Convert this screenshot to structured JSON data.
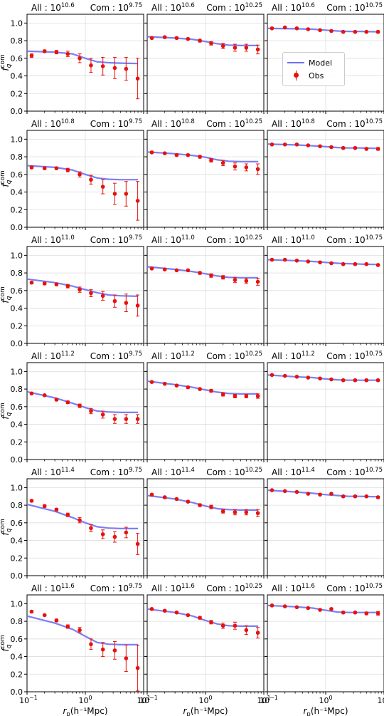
{
  "legend": {
    "model_label": "Model",
    "obs_label": "Obs"
  },
  "colors": {
    "model": "#6f6ff5",
    "obs": "#e8120c",
    "grid": "#dddddd",
    "axis": "#000000"
  },
  "axes_common": {
    "ylabel": "f_q^com",
    "ylabel_main": "f",
    "ylabel_sub": "q",
    "ylabel_sup": "com",
    "xlabel_main": "r",
    "xlabel_sub": "p",
    "xlabel_rest": "(h⁻¹Mpc)",
    "xlim": [
      0.1,
      10
    ],
    "ylim": [
      0.0,
      1.1
    ],
    "xscale": "log",
    "grid": true,
    "yticks": [
      "0.0",
      "0.2",
      "0.4",
      "0.6",
      "0.8",
      "1.0"
    ],
    "xtick_base": "10",
    "xtick_exps": [
      "−1",
      "0",
      "1"
    ]
  },
  "chart_data": {
    "type": "scatter",
    "r_obs": [
      0.12,
      0.2,
      0.32,
      0.5,
      0.8,
      1.25,
      2.0,
      3.2,
      5.0,
      7.9
    ],
    "rows": [
      {
        "all_mantissa": "10",
        "all_exp": "10.6"
      },
      {
        "all_mantissa": "10",
        "all_exp": "10.8"
      },
      {
        "all_mantissa": "10",
        "all_exp": "11.0"
      },
      {
        "all_mantissa": "10",
        "all_exp": "11.2"
      },
      {
        "all_mantissa": "10",
        "all_exp": "11.4"
      },
      {
        "all_mantissa": "10",
        "all_exp": "11.6"
      }
    ],
    "cols": [
      {
        "com_mantissa": "10",
        "com_exp": "9.75"
      },
      {
        "com_mantissa": "10",
        "com_exp": "10.25"
      },
      {
        "com_mantissa": "10",
        "com_exp": "10.75"
      }
    ],
    "title_all": "All : ",
    "title_com": "Com : ",
    "panels": [
      {
        "row": 0,
        "col": 0,
        "model_r": [
          0.1,
          0.3,
          0.6,
          1.0,
          1.6,
          2.5,
          4.0,
          8.0
        ],
        "model_f": [
          0.68,
          0.67,
          0.65,
          0.6,
          0.56,
          0.55,
          0.545,
          0.54
        ],
        "obs_f": [
          0.63,
          0.68,
          0.67,
          0.65,
          0.6,
          0.52,
          0.51,
          0.49,
          0.48,
          0.37
        ],
        "obs_err": [
          0.02,
          0.015,
          0.02,
          0.03,
          0.05,
          0.08,
          0.1,
          0.12,
          0.13,
          0.23
        ]
      },
      {
        "row": 0,
        "col": 1,
        "model_r": [
          0.1,
          0.3,
          0.6,
          1.0,
          1.6,
          2.5,
          4.0,
          8.0
        ],
        "model_f": [
          0.845,
          0.83,
          0.815,
          0.79,
          0.765,
          0.75,
          0.745,
          0.745
        ],
        "obs_f": [
          0.83,
          0.84,
          0.83,
          0.82,
          0.8,
          0.77,
          0.74,
          0.72,
          0.72,
          0.7
        ],
        "obs_err": [
          0.01,
          0.01,
          0.01,
          0.01,
          0.015,
          0.02,
          0.03,
          0.04,
          0.04,
          0.05
        ]
      },
      {
        "row": 0,
        "col": 2,
        "model_r": [
          0.1,
          0.3,
          0.6,
          1.0,
          1.6,
          2.5,
          4.0,
          8.0
        ],
        "model_f": [
          0.94,
          0.935,
          0.93,
          0.92,
          0.91,
          0.905,
          0.905,
          0.9
        ],
        "obs_f": [
          0.94,
          0.95,
          0.94,
          0.93,
          0.92,
          0.91,
          0.9,
          0.9,
          0.9,
          0.9
        ],
        "obs_err": [
          0.005,
          0.005,
          0.005,
          0.005,
          0.005,
          0.008,
          0.01,
          0.01,
          0.01,
          0.012
        ]
      },
      {
        "row": 1,
        "col": 0,
        "model_r": [
          0.1,
          0.3,
          0.6,
          1.0,
          1.6,
          2.5,
          4.0,
          8.0
        ],
        "model_f": [
          0.7,
          0.68,
          0.65,
          0.6,
          0.56,
          0.545,
          0.54,
          0.54
        ],
        "obs_f": [
          0.68,
          0.67,
          0.67,
          0.65,
          0.6,
          0.54,
          0.46,
          0.38,
          0.38,
          0.3
        ],
        "obs_err": [
          0.015,
          0.015,
          0.015,
          0.02,
          0.03,
          0.05,
          0.08,
          0.12,
          0.14,
          0.22
        ]
      },
      {
        "row": 1,
        "col": 1,
        "model_r": [
          0.1,
          0.3,
          0.6,
          1.0,
          1.6,
          2.5,
          4.0,
          8.0
        ],
        "model_f": [
          0.855,
          0.835,
          0.815,
          0.795,
          0.765,
          0.75,
          0.745,
          0.745
        ],
        "obs_f": [
          0.85,
          0.84,
          0.82,
          0.82,
          0.8,
          0.76,
          0.73,
          0.69,
          0.68,
          0.66
        ],
        "obs_err": [
          0.01,
          0.01,
          0.01,
          0.01,
          0.015,
          0.02,
          0.03,
          0.04,
          0.04,
          0.06
        ]
      },
      {
        "row": 1,
        "col": 2,
        "model_r": [
          0.1,
          0.3,
          0.6,
          1.0,
          1.6,
          2.5,
          4.0,
          8.0
        ],
        "model_f": [
          0.945,
          0.935,
          0.925,
          0.915,
          0.905,
          0.9,
          0.9,
          0.895
        ],
        "obs_f": [
          0.94,
          0.94,
          0.94,
          0.93,
          0.92,
          0.91,
          0.9,
          0.9,
          0.89,
          0.89
        ],
        "obs_err": [
          0.005,
          0.005,
          0.005,
          0.005,
          0.005,
          0.008,
          0.01,
          0.01,
          0.012,
          0.015
        ]
      },
      {
        "row": 2,
        "col": 0,
        "model_r": [
          0.1,
          0.3,
          0.6,
          1.0,
          1.6,
          2.5,
          4.0,
          8.0
        ],
        "model_f": [
          0.73,
          0.69,
          0.65,
          0.61,
          0.575,
          0.55,
          0.54,
          0.535
        ],
        "obs_f": [
          0.69,
          0.68,
          0.67,
          0.65,
          0.61,
          0.57,
          0.54,
          0.48,
          0.46,
          0.43
        ],
        "obs_err": [
          0.015,
          0.015,
          0.015,
          0.02,
          0.03,
          0.04,
          0.05,
          0.07,
          0.1,
          0.12
        ]
      },
      {
        "row": 2,
        "col": 1,
        "model_r": [
          0.1,
          0.3,
          0.6,
          1.0,
          1.6,
          2.5,
          4.0,
          8.0
        ],
        "model_f": [
          0.87,
          0.84,
          0.815,
          0.79,
          0.765,
          0.75,
          0.745,
          0.745
        ],
        "obs_f": [
          0.85,
          0.84,
          0.83,
          0.83,
          0.8,
          0.77,
          0.75,
          0.72,
          0.71,
          0.7
        ],
        "obs_err": [
          0.01,
          0.01,
          0.01,
          0.01,
          0.015,
          0.02,
          0.02,
          0.03,
          0.03,
          0.04
        ]
      },
      {
        "row": 2,
        "col": 2,
        "model_r": [
          0.1,
          0.3,
          0.6,
          1.0,
          1.6,
          2.5,
          4.0,
          8.0
        ],
        "model_f": [
          0.95,
          0.94,
          0.93,
          0.92,
          0.91,
          0.905,
          0.9,
          0.895
        ],
        "obs_f": [
          0.95,
          0.95,
          0.94,
          0.93,
          0.92,
          0.91,
          0.9,
          0.9,
          0.9,
          0.89
        ],
        "obs_err": [
          0.005,
          0.005,
          0.005,
          0.005,
          0.005,
          0.006,
          0.008,
          0.01,
          0.01,
          0.012
        ]
      },
      {
        "row": 3,
        "col": 0,
        "model_r": [
          0.1,
          0.3,
          0.6,
          1.0,
          1.6,
          2.5,
          4.0,
          8.0
        ],
        "model_f": [
          0.77,
          0.7,
          0.64,
          0.59,
          0.55,
          0.54,
          0.535,
          0.535
        ],
        "obs_f": [
          0.75,
          0.73,
          0.68,
          0.65,
          0.61,
          0.55,
          0.51,
          0.46,
          0.46,
          0.46
        ],
        "obs_err": [
          0.01,
          0.01,
          0.015,
          0.015,
          0.02,
          0.03,
          0.04,
          0.05,
          0.05,
          0.05
        ]
      },
      {
        "row": 3,
        "col": 1,
        "model_r": [
          0.1,
          0.3,
          0.6,
          1.0,
          1.6,
          2.5,
          4.0,
          8.0
        ],
        "model_f": [
          0.89,
          0.85,
          0.82,
          0.79,
          0.765,
          0.75,
          0.745,
          0.745
        ],
        "obs_f": [
          0.88,
          0.86,
          0.84,
          0.82,
          0.8,
          0.78,
          0.74,
          0.72,
          0.72,
          0.72
        ],
        "obs_err": [
          0.01,
          0.01,
          0.01,
          0.01,
          0.01,
          0.015,
          0.02,
          0.02,
          0.02,
          0.025
        ]
      },
      {
        "row": 3,
        "col": 2,
        "model_r": [
          0.1,
          0.3,
          0.6,
          1.0,
          1.6,
          2.5,
          4.0,
          8.0
        ],
        "model_f": [
          0.96,
          0.94,
          0.93,
          0.915,
          0.905,
          0.9,
          0.9,
          0.9
        ],
        "obs_f": [
          0.96,
          0.95,
          0.94,
          0.93,
          0.92,
          0.91,
          0.9,
          0.9,
          0.9,
          0.9
        ],
        "obs_err": [
          0.005,
          0.005,
          0.005,
          0.005,
          0.005,
          0.006,
          0.008,
          0.01,
          0.01,
          0.01
        ]
      },
      {
        "row": 4,
        "col": 0,
        "model_r": [
          0.1,
          0.3,
          0.6,
          1.0,
          1.6,
          2.5,
          4.0,
          8.0
        ],
        "model_f": [
          0.81,
          0.73,
          0.66,
          0.6,
          0.555,
          0.54,
          0.535,
          0.535
        ],
        "obs_f": [
          0.85,
          0.79,
          0.75,
          0.69,
          0.63,
          0.54,
          0.47,
          0.44,
          0.49,
          0.36
        ],
        "obs_err": [
          0.01,
          0.015,
          0.015,
          0.02,
          0.03,
          0.04,
          0.05,
          0.06,
          0.06,
          0.12
        ]
      },
      {
        "row": 4,
        "col": 1,
        "model_r": [
          0.1,
          0.3,
          0.6,
          1.0,
          1.6,
          2.5,
          4.0,
          8.0
        ],
        "model_f": [
          0.91,
          0.87,
          0.83,
          0.79,
          0.76,
          0.75,
          0.745,
          0.745
        ],
        "obs_f": [
          0.92,
          0.89,
          0.87,
          0.84,
          0.8,
          0.78,
          0.73,
          0.72,
          0.72,
          0.71
        ],
        "obs_err": [
          0.01,
          0.01,
          0.01,
          0.01,
          0.015,
          0.02,
          0.02,
          0.03,
          0.03,
          0.04
        ]
      },
      {
        "row": 4,
        "col": 2,
        "model_r": [
          0.1,
          0.3,
          0.6,
          1.0,
          1.6,
          2.5,
          4.0,
          8.0
        ],
        "model_f": [
          0.97,
          0.95,
          0.935,
          0.92,
          0.91,
          0.9,
          0.9,
          0.895
        ],
        "obs_f": [
          0.97,
          0.96,
          0.95,
          0.93,
          0.92,
          0.93,
          0.9,
          0.9,
          0.9,
          0.89
        ],
        "obs_err": [
          0.005,
          0.005,
          0.005,
          0.005,
          0.005,
          0.008,
          0.01,
          0.01,
          0.01,
          0.012
        ]
      },
      {
        "row": 5,
        "col": 0,
        "model_r": [
          0.1,
          0.3,
          0.6,
          1.0,
          1.6,
          2.5,
          4.0,
          8.0
        ],
        "model_f": [
          0.86,
          0.78,
          0.71,
          0.63,
          0.56,
          0.54,
          0.535,
          0.535
        ],
        "obs_f": [
          0.91,
          0.87,
          0.81,
          0.74,
          0.7,
          0.54,
          0.48,
          0.47,
          0.38,
          0.27
        ],
        "obs_err": [
          0.01,
          0.01,
          0.015,
          0.02,
          0.03,
          0.06,
          0.08,
          0.1,
          0.15,
          0.26
        ]
      },
      {
        "row": 5,
        "col": 1,
        "model_r": [
          0.1,
          0.3,
          0.6,
          1.0,
          1.6,
          2.5,
          4.0,
          8.0
        ],
        "model_f": [
          0.94,
          0.9,
          0.86,
          0.81,
          0.77,
          0.75,
          0.745,
          0.745
        ],
        "obs_f": [
          0.94,
          0.92,
          0.9,
          0.87,
          0.84,
          0.79,
          0.75,
          0.75,
          0.7,
          0.67
        ],
        "obs_err": [
          0.01,
          0.01,
          0.01,
          0.01,
          0.015,
          0.02,
          0.03,
          0.04,
          0.05,
          0.06
        ]
      },
      {
        "row": 5,
        "col": 2,
        "model_r": [
          0.1,
          0.3,
          0.6,
          1.0,
          1.6,
          2.5,
          4.0,
          8.0
        ],
        "model_f": [
          0.98,
          0.965,
          0.95,
          0.925,
          0.905,
          0.9,
          0.9,
          0.9
        ],
        "obs_f": [
          0.98,
          0.97,
          0.96,
          0.95,
          0.93,
          0.94,
          0.9,
          0.9,
          0.89,
          0.89
        ],
        "obs_err": [
          0.005,
          0.005,
          0.005,
          0.005,
          0.005,
          0.01,
          0.01,
          0.01,
          0.015,
          0.02
        ]
      }
    ]
  }
}
